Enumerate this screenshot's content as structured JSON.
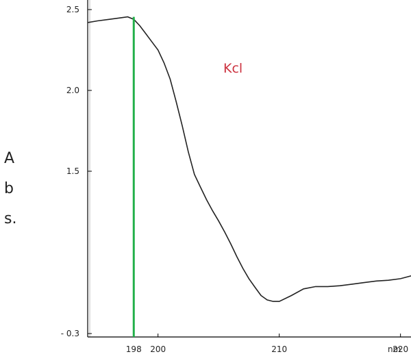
{
  "chart_data": {
    "type": "line",
    "title": "",
    "xlabel": "",
    "xunit": "nm",
    "ylabel_lines": [
      "A",
      "b",
      "s."
    ],
    "xlim": [
      194.2,
      222.0
    ],
    "ylim": [
      -0.3,
      2.5
    ],
    "y_scale_note": "non-linear: the lowest tick is labelled - 0.3",
    "x_ticks": [
      {
        "value": 198,
        "label": "198"
      },
      {
        "value": 200,
        "label": "200"
      },
      {
        "value": 210,
        "label": "210"
      },
      {
        "value": 220,
        "label": "220"
      }
    ],
    "y_ticks": [
      {
        "value": 2.5,
        "label": "2.5"
      },
      {
        "value": 2.0,
        "label": "2.0"
      },
      {
        "value": 1.5,
        "label": "1.5"
      },
      {
        "value": -0.3,
        "label": "- 0.3"
      }
    ],
    "grid": false,
    "series": [
      {
        "name": "Kcl",
        "color": "#222222",
        "label_color": "#cc3340",
        "x": [
          194.2,
          195.0,
          196.0,
          197.0,
          197.5,
          198.0,
          198.5,
          199.0,
          199.5,
          200.0,
          200.5,
          201.0,
          201.5,
          202.0,
          202.5,
          203.0,
          203.5,
          204.0,
          204.5,
          205.0,
          205.5,
          206.0,
          206.5,
          207.0,
          207.5,
          208.0,
          208.5,
          209.0,
          209.5,
          210.0,
          211.0,
          212.0,
          213.0,
          214.0,
          215.0,
          216.0,
          217.0,
          218.0,
          219.0,
          220.0,
          221.0,
          222.0
        ],
        "y": [
          2.42,
          2.43,
          2.44,
          2.45,
          2.455,
          2.44,
          2.4,
          2.35,
          2.3,
          2.25,
          2.17,
          2.07,
          1.93,
          1.78,
          1.62,
          1.46,
          1.3,
          1.14,
          1.0,
          0.87,
          0.73,
          0.58,
          0.42,
          0.27,
          0.14,
          0.03,
          -0.04,
          -0.07,
          -0.08,
          -0.08,
          -0.04,
          0.01,
          0.04,
          0.04,
          0.05,
          0.07,
          0.09,
          0.11,
          0.12,
          0.14,
          0.18,
          0.23
        ]
      }
    ],
    "marker": {
      "x": 198,
      "color": "#22b04a"
    }
  }
}
